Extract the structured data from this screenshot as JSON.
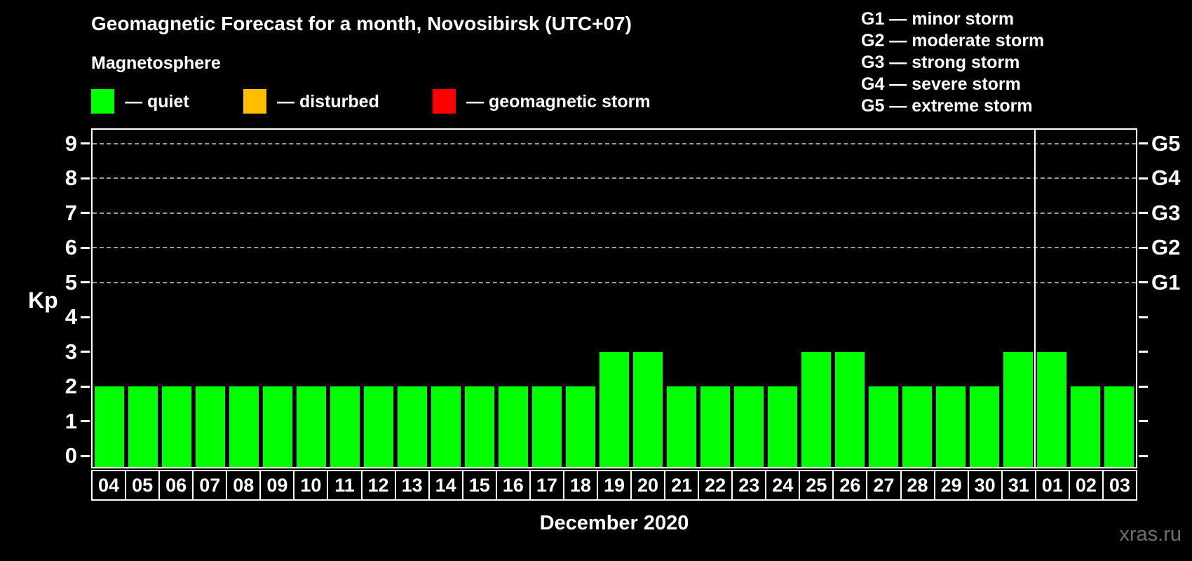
{
  "page": {
    "title": "Geomagnetic Forecast for a month, Novosibirsk (UTC+07)",
    "subtitle": "Magnetosphere",
    "watermark": "xras.ru"
  },
  "legend": {
    "items": [
      {
        "name": "quiet",
        "label": "— quiet",
        "color": "#00ff00"
      },
      {
        "name": "disturbed",
        "label": "— disturbed",
        "color": "#ffbf00"
      },
      {
        "name": "geomagnetic-storm",
        "label": "— geomagnetic storm",
        "color": "#ff0000"
      }
    ]
  },
  "storm_scale": {
    "items": [
      "G1 — minor storm",
      "G2 — moderate storm",
      "G3 — strong storm",
      "G4 — severe storm",
      "G5 — extreme storm"
    ]
  },
  "chart_data": {
    "type": "bar",
    "title": "Geomagnetic Forecast for a month, Novosibirsk (UTC+07)",
    "xlabel": "December 2020",
    "ylabel": "Kp",
    "categories": [
      "04",
      "05",
      "06",
      "07",
      "08",
      "09",
      "10",
      "11",
      "12",
      "13",
      "14",
      "15",
      "16",
      "17",
      "18",
      "19",
      "20",
      "21",
      "22",
      "23",
      "24",
      "25",
      "26",
      "27",
      "28",
      "29",
      "30",
      "31",
      "01",
      "02",
      "03"
    ],
    "values": [
      2,
      2,
      2,
      2,
      2,
      2,
      2,
      2,
      2,
      2,
      2,
      2,
      2,
      2,
      2,
      3,
      3,
      2,
      2,
      2,
      2,
      3,
      3,
      2,
      2,
      2,
      2,
      3,
      3,
      2,
      2
    ],
    "bar_status": "quiet",
    "yticks": [
      0,
      1,
      2,
      3,
      4,
      5,
      6,
      7,
      8,
      9
    ],
    "ylim": [
      -0.32,
      9.4
    ],
    "gridlines_at": [
      5,
      6,
      7,
      8,
      9
    ],
    "right_axis": [
      {
        "value": 5,
        "label": "G1"
      },
      {
        "value": 6,
        "label": "G2"
      },
      {
        "value": 7,
        "label": "G3"
      },
      {
        "value": 8,
        "label": "G4"
      },
      {
        "value": 9,
        "label": "G5"
      }
    ],
    "month_separator_after": "31",
    "legend_position": "top-left",
    "grid": "horizontal dashed lines at Kp 5-9 only"
  },
  "colors": {
    "background": "#000000",
    "axis": "#ffffff",
    "grid": "#9a9a9a",
    "bar_quiet": "#00ff00",
    "bar_disturbed": "#ffbf00",
    "bar_storm": "#ff0000",
    "watermark": "#6f6f6f"
  }
}
